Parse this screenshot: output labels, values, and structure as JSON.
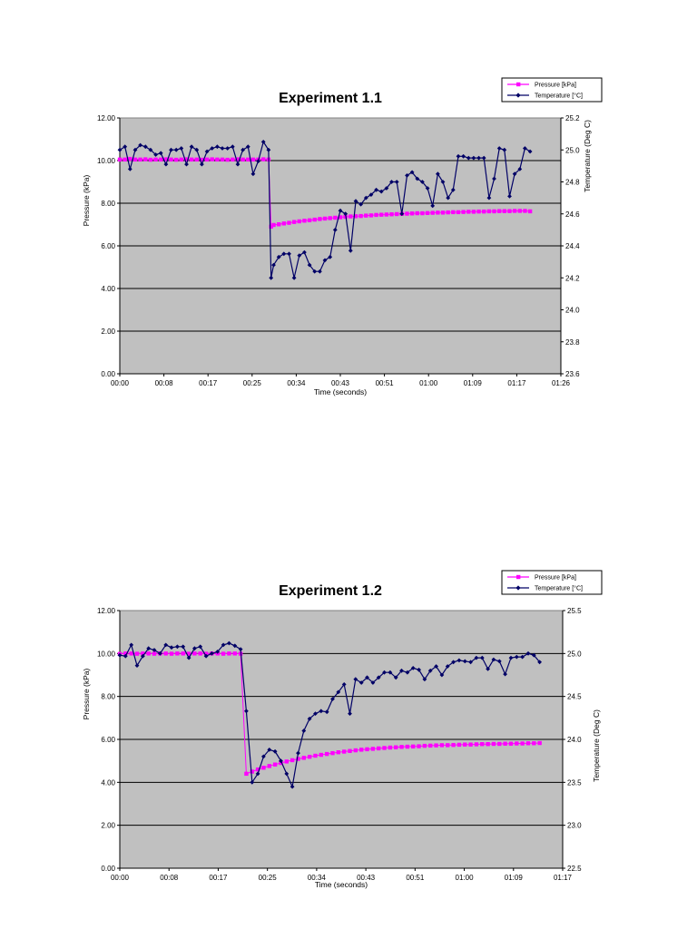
{
  "chart_data": [
    {
      "type": "line",
      "title": "Experiment 1.1",
      "xlabel": "Time (seconds)",
      "ylabel": "Pressure (kPa)",
      "y2label": "Temperature (Deg C)",
      "x_ticks": [
        "00:00",
        "00:08",
        "00:17",
        "00:25",
        "00:34",
        "00:43",
        "00:51",
        "01:00",
        "01:09",
        "01:17",
        "01:26"
      ],
      "y_ticks": [
        "0.00",
        "2.00",
        "4.00",
        "6.00",
        "8.00",
        "10.00",
        "12.00"
      ],
      "y2_ticks": [
        "23.6",
        "23.8",
        "24.0",
        "24.2",
        "24.4",
        "24.6",
        "24.8",
        "25.0",
        "25.2"
      ],
      "xlim_seconds": [
        0,
        86
      ],
      "ylim": [
        0,
        12
      ],
      "y2lim": [
        23.6,
        25.2
      ],
      "grid": true,
      "legend": "top-right",
      "series": [
        {
          "name": "Pressure [kPa]",
          "axis": "left",
          "color": "#ff00ff",
          "marker": "square",
          "x": [
            0,
            1,
            2,
            3,
            4,
            5,
            6,
            7,
            8,
            9,
            10,
            11,
            12,
            13,
            14,
            15,
            16,
            17,
            18,
            19,
            20,
            21,
            22,
            23,
            24,
            25,
            26,
            27,
            28,
            29,
            29.5,
            30,
            31,
            32,
            33,
            34,
            35,
            36,
            37,
            38,
            39,
            40,
            41,
            42,
            43,
            44,
            45,
            46,
            47,
            48,
            49,
            50,
            51,
            52,
            53,
            54,
            55,
            56,
            57,
            58,
            59,
            60,
            61,
            62,
            63,
            64,
            65,
            66,
            67,
            68,
            69,
            70,
            71,
            72,
            73,
            74,
            75,
            76,
            77,
            78,
            79,
            80
          ],
          "values": [
            10.05,
            10.05,
            10.08,
            10.05,
            10.05,
            10.06,
            10.04,
            10.05,
            10.05,
            10.06,
            10.05,
            10.04,
            10.05,
            10.06,
            10.05,
            10.05,
            10.04,
            10.05,
            10.06,
            10.05,
            10.05,
            10.04,
            10.05,
            10.06,
            10.05,
            10.05,
            10.05,
            10.05,
            10.06,
            10.05,
            6.9,
            6.98,
            7.01,
            7.05,
            7.08,
            7.12,
            7.15,
            7.18,
            7.2,
            7.23,
            7.26,
            7.28,
            7.3,
            7.32,
            7.34,
            7.36,
            7.38,
            7.39,
            7.4,
            7.42,
            7.43,
            7.45,
            7.46,
            7.47,
            7.48,
            7.49,
            7.5,
            7.51,
            7.52,
            7.53,
            7.53,
            7.54,
            7.55,
            7.56,
            7.56,
            7.57,
            7.58,
            7.58,
            7.59,
            7.6,
            7.6,
            7.61,
            7.61,
            7.62,
            7.62,
            7.63,
            7.63,
            7.63,
            7.64,
            7.64,
            7.64,
            7.62
          ]
        },
        {
          "name": "Temperature [°C]",
          "axis": "right",
          "color": "#000066",
          "marker": "diamond",
          "x": [
            0,
            1,
            2,
            3,
            4,
            5,
            6,
            7,
            8,
            9,
            10,
            11,
            12,
            13,
            14,
            15,
            16,
            17,
            18,
            19,
            20,
            21,
            22,
            23,
            24,
            25,
            26,
            27,
            28,
            29,
            29.5,
            30,
            31,
            32,
            33,
            34,
            35,
            36,
            37,
            38,
            39,
            40,
            41,
            42,
            43,
            44,
            45,
            46,
            47,
            48,
            49,
            50,
            51,
            52,
            53,
            54,
            55,
            56,
            57,
            58,
            59,
            60,
            61,
            62,
            63,
            64,
            65,
            66,
            67,
            68,
            69,
            70,
            71,
            72,
            73,
            74,
            75,
            76,
            77,
            78,
            79,
            80
          ],
          "values": [
            25.0,
            25.02,
            24.88,
            25.0,
            25.03,
            25.02,
            25.0,
            24.97,
            24.98,
            24.91,
            25.0,
            25.0,
            25.01,
            24.91,
            25.02,
            25.0,
            24.91,
            24.99,
            25.01,
            25.02,
            25.01,
            25.01,
            25.02,
            24.91,
            25.0,
            25.02,
            24.85,
            24.93,
            25.05,
            25.0,
            24.2,
            24.28,
            24.33,
            24.35,
            24.35,
            24.2,
            24.34,
            24.36,
            24.28,
            24.24,
            24.24,
            24.31,
            24.33,
            24.5,
            24.62,
            24.6,
            24.37,
            24.68,
            24.66,
            24.7,
            24.72,
            24.75,
            24.74,
            24.76,
            24.8,
            24.8,
            24.6,
            24.84,
            24.86,
            24.82,
            24.8,
            24.76,
            24.65,
            24.85,
            24.8,
            24.7,
            24.75,
            24.96,
            24.96,
            24.95,
            24.95,
            24.95,
            24.95,
            24.7,
            24.82,
            25.01,
            25.0,
            24.71,
            24.85,
            24.88,
            25.01,
            24.99
          ]
        }
      ]
    },
    {
      "type": "line",
      "title": "Experiment 1.2",
      "xlabel": "Time (seconds)",
      "ylabel": "Pressure (kPa)",
      "y2label": "Temperature (Deg C)",
      "x_ticks": [
        "00:00",
        "00:08",
        "00:17",
        "00:25",
        "00:34",
        "00:43",
        "00:51",
        "01:00",
        "01:09",
        "01:17"
      ],
      "y_ticks": [
        "0.00",
        "2.00",
        "4.00",
        "6.00",
        "8.00",
        "10.00",
        "12.00"
      ],
      "y2_ticks": [
        "22.5",
        "23.0",
        "23.5",
        "24.0",
        "24.5",
        "25.0",
        "25.5"
      ],
      "xlim_seconds": [
        0,
        77
      ],
      "ylim": [
        0,
        12
      ],
      "y2lim": [
        22.5,
        25.5
      ],
      "grid": true,
      "legend": "top-right",
      "series": [
        {
          "name": "Pressure [kPa]",
          "axis": "left",
          "color": "#ff00ff",
          "marker": "square",
          "x": [
            0,
            1,
            2,
            3,
            4,
            5,
            6,
            7,
            8,
            9,
            10,
            11,
            12,
            13,
            14,
            15,
            16,
            17,
            18,
            19,
            20,
            21,
            22,
            23,
            24,
            25,
            26,
            27,
            28,
            29,
            30,
            31,
            32,
            33,
            34,
            35,
            36,
            37,
            38,
            39,
            40,
            41,
            42,
            43,
            44,
            45,
            46,
            47,
            48,
            49,
            50,
            51,
            52,
            53,
            54,
            55,
            56,
            57,
            58,
            59,
            60,
            61,
            62,
            63,
            64,
            65,
            66,
            67,
            68,
            69,
            70,
            71,
            72,
            73
          ],
          "values": [
            9.98,
            10.0,
            10.0,
            9.99,
            10.0,
            10.0,
            9.99,
            10.0,
            10.0,
            9.99,
            10.0,
            10.0,
            9.99,
            10.0,
            10.0,
            9.99,
            10.0,
            10.0,
            9.99,
            10.0,
            10.0,
            9.99,
            4.4,
            4.5,
            4.6,
            4.68,
            4.76,
            4.83,
            4.9,
            4.97,
            5.03,
            5.09,
            5.14,
            5.19,
            5.24,
            5.28,
            5.32,
            5.36,
            5.4,
            5.43,
            5.46,
            5.49,
            5.52,
            5.54,
            5.56,
            5.58,
            5.6,
            5.62,
            5.63,
            5.65,
            5.66,
            5.67,
            5.68,
            5.7,
            5.71,
            5.72,
            5.73,
            5.73,
            5.74,
            5.75,
            5.76,
            5.76,
            5.77,
            5.78,
            5.78,
            5.79,
            5.79,
            5.8,
            5.8,
            5.81,
            5.81,
            5.82,
            5.82,
            5.83
          ]
        },
        {
          "name": "Temperature [°C]",
          "axis": "right",
          "color": "#000066",
          "marker": "diamond",
          "x": [
            0,
            1,
            2,
            3,
            4,
            5,
            6,
            7,
            8,
            9,
            10,
            11,
            12,
            13,
            14,
            15,
            16,
            17,
            18,
            19,
            20,
            21,
            22,
            23,
            24,
            25,
            26,
            27,
            28,
            29,
            30,
            31,
            32,
            33,
            34,
            35,
            36,
            37,
            38,
            39,
            40,
            41,
            42,
            43,
            44,
            45,
            46,
            47,
            48,
            49,
            50,
            51,
            52,
            53,
            54,
            55,
            56,
            57,
            58,
            59,
            60,
            61,
            62,
            63,
            64,
            65,
            66,
            67,
            68,
            69,
            70,
            71,
            72,
            73
          ],
          "values": [
            24.98,
            24.97,
            25.1,
            24.86,
            24.97,
            25.06,
            25.04,
            25.0,
            25.1,
            25.07,
            25.08,
            25.08,
            24.95,
            25.06,
            25.08,
            24.97,
            25.0,
            25.02,
            25.1,
            25.12,
            25.09,
            25.05,
            24.33,
            23.5,
            23.6,
            23.8,
            23.88,
            23.86,
            23.75,
            23.6,
            23.45,
            23.84,
            24.1,
            24.24,
            24.3,
            24.33,
            24.32,
            24.47,
            24.55,
            24.64,
            24.3,
            24.7,
            24.66,
            24.72,
            24.66,
            24.72,
            24.78,
            24.78,
            24.72,
            24.8,
            24.78,
            24.83,
            24.81,
            24.7,
            24.8,
            24.85,
            24.75,
            24.85,
            24.9,
            24.92,
            24.91,
            24.9,
            24.95,
            24.95,
            24.82,
            24.93,
            24.91,
            24.76,
            24.95,
            24.96,
            24.96,
            25.0,
            24.98,
            24.9
          ]
        }
      ]
    }
  ]
}
